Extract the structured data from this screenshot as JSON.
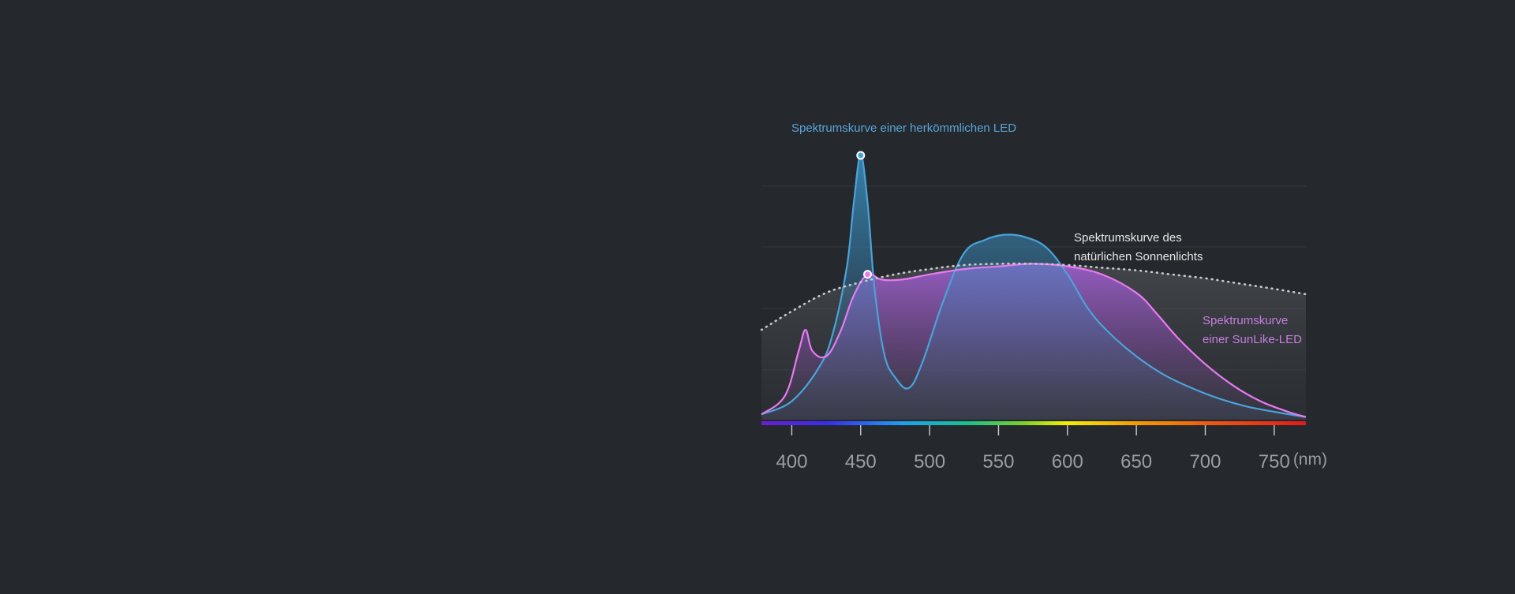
{
  "chart_data": {
    "type": "area",
    "title": "",
    "xlabel": "",
    "ylabel": "",
    "x_unit": "(nm)",
    "xlim": [
      378,
      773
    ],
    "x_ticks": [
      400,
      450,
      500,
      550,
      600,
      650,
      700,
      750
    ],
    "ylim": [
      0,
      1
    ],
    "grid": true,
    "series": [
      {
        "name": "Spektrumskurve einer herkömmlichen LED",
        "color": "#4aa3d8",
        "style": "solid-filled",
        "x": [
          378,
          400,
          420,
          430,
          440,
          445,
          450,
          455,
          460,
          467,
          475,
          485,
          495,
          510,
          525,
          540,
          555,
          570,
          585,
          600,
          615,
          630,
          650,
          670,
          690,
          710,
          730,
          750,
          773
        ],
        "values": [
          0.02,
          0.07,
          0.2,
          0.33,
          0.58,
          0.82,
          1.0,
          0.82,
          0.5,
          0.25,
          0.16,
          0.12,
          0.22,
          0.45,
          0.63,
          0.68,
          0.7,
          0.69,
          0.65,
          0.55,
          0.42,
          0.33,
          0.24,
          0.17,
          0.12,
          0.08,
          0.05,
          0.03,
          0.01
        ]
      },
      {
        "name": "Spektrumskurve einer SunLike-LED",
        "color": "#e87af0",
        "style": "solid-filled",
        "x": [
          378,
          395,
          405,
          410,
          415,
          425,
          435,
          445,
          455,
          465,
          480,
          500,
          525,
          550,
          575,
          600,
          625,
          650,
          665,
          680,
          700,
          720,
          740,
          760,
          773
        ],
        "values": [
          0.02,
          0.09,
          0.26,
          0.34,
          0.26,
          0.24,
          0.33,
          0.47,
          0.55,
          0.53,
          0.53,
          0.55,
          0.57,
          0.58,
          0.59,
          0.58,
          0.55,
          0.48,
          0.4,
          0.31,
          0.21,
          0.13,
          0.07,
          0.03,
          0.01
        ]
      },
      {
        "name": "Spektrumskurve des natürlichen Sonnenlichts",
        "color": "#c8c8c8",
        "style": "dotted",
        "x": [
          378,
          400,
          425,
          450,
          475,
          500,
          525,
          550,
          575,
          600,
          625,
          650,
          675,
          700,
          725,
          750,
          773
        ],
        "values": [
          0.34,
          0.41,
          0.48,
          0.52,
          0.55,
          0.57,
          0.585,
          0.59,
          0.59,
          0.585,
          0.575,
          0.565,
          0.55,
          0.535,
          0.515,
          0.495,
          0.475
        ]
      }
    ],
    "markers": [
      {
        "series": "Spektrumskurve einer herkömmlichen LED",
        "x": 450,
        "y": 1.0,
        "color": "#4aa3d8"
      },
      {
        "series": "Spektrumskurve einer SunLike-LED",
        "x": 455,
        "y": 0.55,
        "color": "#e87af0"
      }
    ],
    "annotations": {
      "conventional_led": "Spektrumskurve einer herkömmlichen LED",
      "sunlight_line1": "Spektrumskurve des",
      "sunlight_line2": "natürlichen Sonnenlichts",
      "sunlike_line1": "Spektrumskurve",
      "sunlike_line2": "einer SunLike-LED"
    },
    "colors": {
      "background": "#25282d",
      "grid": "#33363b",
      "tick_label": "#9a9da3",
      "annotation_conventional": "#5aa6d6",
      "annotation_sunlight": "#e6e6e6",
      "annotation_sunlike": "#c77ee0"
    }
  }
}
